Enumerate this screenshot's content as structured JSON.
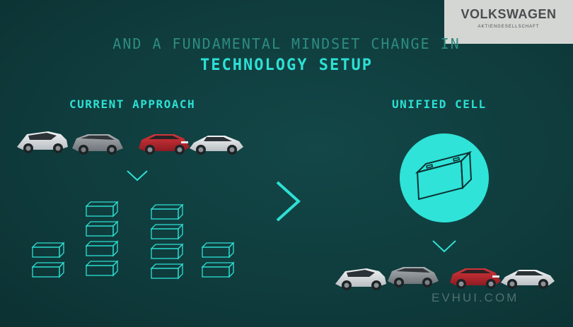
{
  "logo": {
    "brand": "VOLKSWAGEN",
    "sub": "AKTIENGESELLSCHAFT"
  },
  "title": {
    "line1": "AND A FUNDAMENTAL MINDSET CHANGE IN",
    "line2": "TECHNOLOGY SETUP"
  },
  "left": {
    "heading": "CURRENT APPROACH"
  },
  "right": {
    "heading": "UNIFIED CELL"
  },
  "watermark": "EVHUI.COM",
  "colors": {
    "background": "#0f3b3c",
    "accent": "#2de0d4",
    "dim_accent": "#2d8c80",
    "car_red": "#b3262e",
    "car_white": "#e6e8ea"
  }
}
